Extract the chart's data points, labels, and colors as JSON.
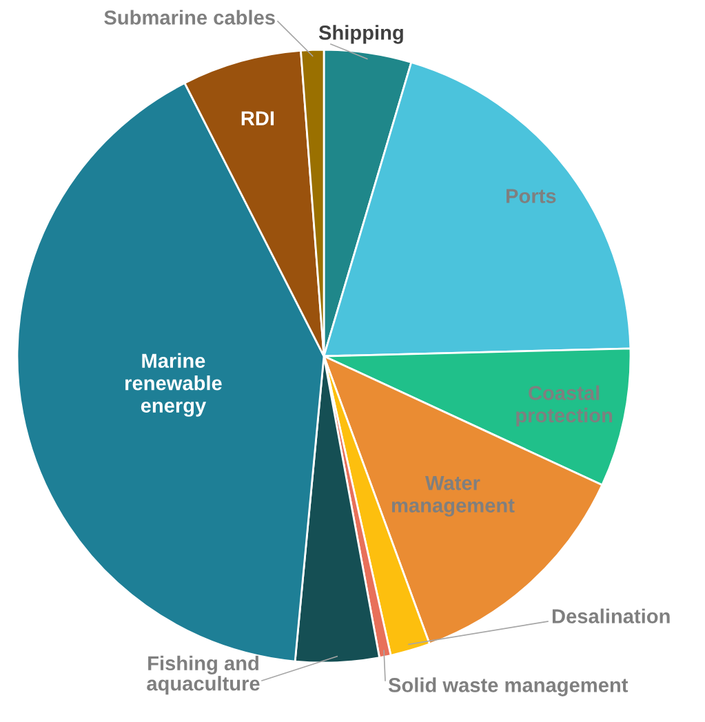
{
  "chart_data": {
    "type": "pie",
    "categories": [
      "Shipping",
      "Ports",
      "Coastal\nprotection",
      "Water\nmanagement",
      "Desalination",
      "Solid waste management",
      "Fishing and\naquaculture",
      "Marine\nrenewable\nenergy",
      "RDI",
      "Submarine cables"
    ],
    "values": [
      4.6,
      20.0,
      7.3,
      12.5,
      2.1,
      0.6,
      4.4,
      41.0,
      6.3,
      1.2
    ],
    "colors": [
      "#1f878a",
      "#4bc3dc",
      "#20c08a",
      "#ea8c33",
      "#fdbf0e",
      "#e8705a",
      "#154f54",
      "#1e7f96",
      "#9a520d",
      "#9a7000"
    ]
  }
}
